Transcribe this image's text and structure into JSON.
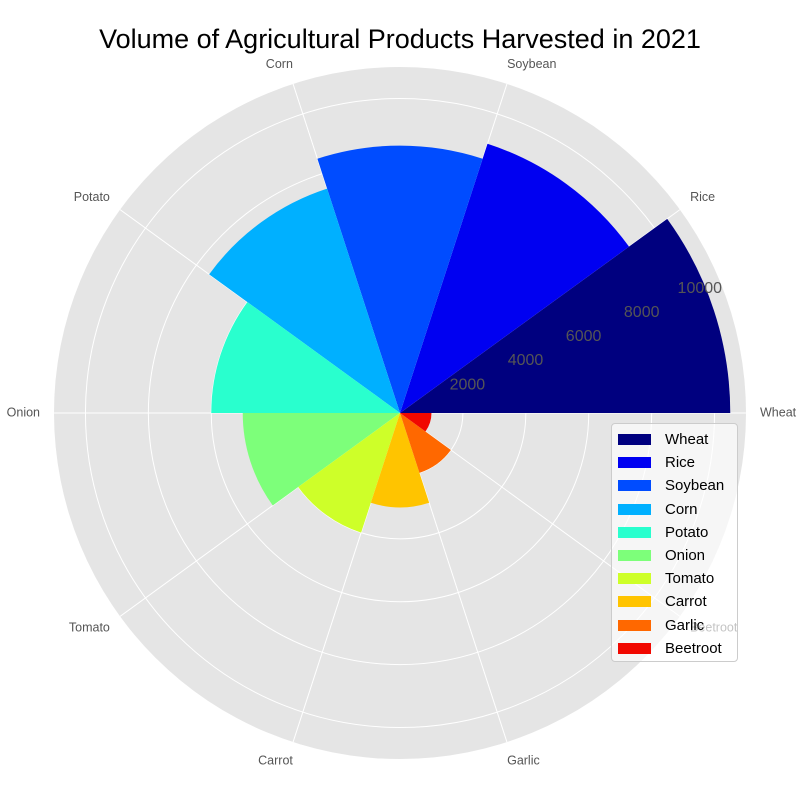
{
  "chart_data": {
    "type": "polar-bar",
    "title": "Volume of Agricultural Products Harvested in 2021",
    "categories": [
      "Wheat",
      "Rice",
      "Soybean",
      "Corn",
      "Potato",
      "Onion",
      "Tomato",
      "Carrot",
      "Garlic",
      "Beetroot"
    ],
    "values": [
      10500,
      9000,
      8500,
      7500,
      6000,
      5000,
      4000,
      3000,
      2000,
      1000
    ],
    "colors": [
      "#00007f",
      "#0000f1",
      "#004cff",
      "#00b0ff",
      "#29ffce",
      "#7dff7a",
      "#ceff29",
      "#ffc400",
      "#ff6800",
      "#f10800"
    ],
    "radial_ticks": [
      "2000",
      "4000",
      "6000",
      "8000",
      "10000"
    ],
    "rmax": 11000,
    "grid": true,
    "legend_position": "lower-right",
    "background": "#e5e5e5"
  }
}
